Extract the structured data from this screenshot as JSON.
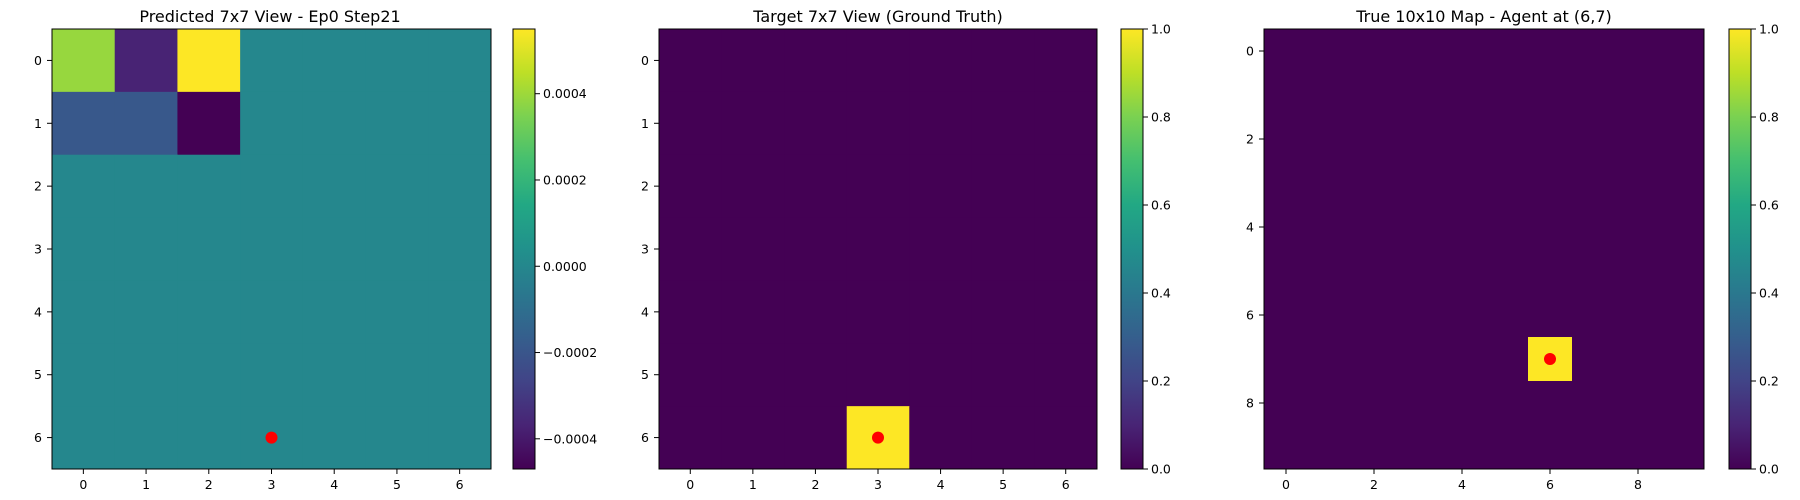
{
  "chart_data": [
    {
      "type": "heatmap",
      "title": "Predicted 7x7 View - Ep0 Step21",
      "rows": 7,
      "cols": 7,
      "x_ticks": [
        0,
        1,
        2,
        3,
        4,
        5,
        6
      ],
      "y_ticks": [
        0,
        1,
        2,
        3,
        4,
        5,
        6
      ],
      "values": [
        [
          0.00039,
          -0.00037,
          0.00055,
          0,
          0,
          0,
          0
        ],
        [
          -0.00019,
          -0.00019,
          -0.00047,
          0,
          0,
          0,
          0
        ],
        [
          0,
          0,
          0,
          0,
          0,
          0,
          0
        ],
        [
          0,
          0,
          0,
          0,
          0,
          0,
          0
        ],
        [
          0,
          0,
          0,
          0,
          0,
          0,
          0
        ],
        [
          0,
          0,
          0,
          0,
          0,
          0,
          0
        ],
        [
          0,
          0,
          0,
          0,
          0,
          0,
          0
        ]
      ],
      "vmin": -0.00047,
      "vmax": 0.00055,
      "colorbar_ticks": [
        -0.0004,
        -0.0002,
        0.0,
        0.0002,
        0.0004
      ],
      "colorbar_labels": [
        "−0.0004",
        "−0.0002",
        "0.0000",
        "0.0002",
        "0.0004"
      ],
      "marker": {
        "x": 3,
        "y": 6,
        "color": "#ff0000"
      }
    },
    {
      "type": "heatmap",
      "title": "Target 7x7 View (Ground Truth)",
      "rows": 7,
      "cols": 7,
      "x_ticks": [
        0,
        1,
        2,
        3,
        4,
        5,
        6
      ],
      "y_ticks": [
        0,
        1,
        2,
        3,
        4,
        5,
        6
      ],
      "values": [
        [
          0,
          0,
          0,
          0,
          0,
          0,
          0
        ],
        [
          0,
          0,
          0,
          0,
          0,
          0,
          0
        ],
        [
          0,
          0,
          0,
          0,
          0,
          0,
          0
        ],
        [
          0,
          0,
          0,
          0,
          0,
          0,
          0
        ],
        [
          0,
          0,
          0,
          0,
          0,
          0,
          0
        ],
        [
          0,
          0,
          0,
          0,
          0,
          0,
          0
        ],
        [
          0,
          0,
          0,
          1,
          0,
          0,
          0
        ]
      ],
      "vmin": 0,
      "vmax": 1,
      "colorbar_ticks": [
        0,
        0.2,
        0.4,
        0.6,
        0.8,
        1.0
      ],
      "colorbar_labels": [
        "0.0",
        "0.2",
        "0.4",
        "0.6",
        "0.8",
        "1.0"
      ],
      "marker": {
        "x": 3,
        "y": 6,
        "color": "#ff0000"
      }
    },
    {
      "type": "heatmap",
      "title": "True 10x10 Map - Agent at (6,7)",
      "rows": 10,
      "cols": 10,
      "x_ticks": [
        0,
        2,
        4,
        6,
        8
      ],
      "y_ticks": [
        0,
        2,
        4,
        6,
        8
      ],
      "values": [
        [
          0,
          0,
          0,
          0,
          0,
          0,
          0,
          0,
          0,
          0
        ],
        [
          0,
          0,
          0,
          0,
          0,
          0,
          0,
          0,
          0,
          0
        ],
        [
          0,
          0,
          0,
          0,
          0,
          0,
          0,
          0,
          0,
          0
        ],
        [
          0,
          0,
          0,
          0,
          0,
          0,
          0,
          0,
          0,
          0
        ],
        [
          0,
          0,
          0,
          0,
          0,
          0,
          0,
          0,
          0,
          0
        ],
        [
          0,
          0,
          0,
          0,
          0,
          0,
          0,
          0,
          0,
          0
        ],
        [
          0,
          0,
          0,
          0,
          0,
          0,
          0,
          0,
          0,
          0
        ],
        [
          0,
          0,
          0,
          0,
          0,
          0,
          1,
          0,
          0,
          0
        ],
        [
          0,
          0,
          0,
          0,
          0,
          0,
          0,
          0,
          0,
          0
        ],
        [
          0,
          0,
          0,
          0,
          0,
          0,
          0,
          0,
          0,
          0
        ]
      ],
      "vmin": 0,
      "vmax": 1,
      "colorbar_ticks": [
        0,
        0.2,
        0.4,
        0.6,
        0.8,
        1.0
      ],
      "colorbar_labels": [
        "0.0",
        "0.2",
        "0.4",
        "0.6",
        "0.8",
        "1.0"
      ],
      "marker": {
        "x": 6,
        "y": 7,
        "color": "#ff0000"
      }
    }
  ]
}
